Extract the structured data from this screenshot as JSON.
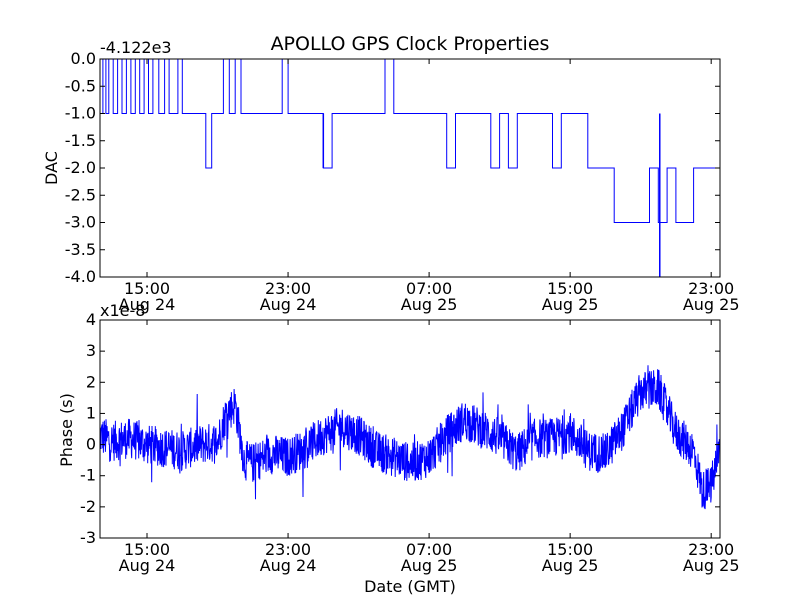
{
  "title": "APOLLO GPS Clock Properties",
  "colors": {
    "series": "#0000ff",
    "axes": "#000000",
    "background": "#ffffff"
  },
  "chart_data": [
    {
      "type": "line",
      "ylabel": "DAC",
      "offset_label": "-4.122e3",
      "ylim": [
        -4.0,
        0.0
      ],
      "yticks": [
        "0.0",
        "-0.5",
        "-1.0",
        "-1.5",
        "-2.0",
        "-2.5",
        "-3.0",
        "-3.5",
        "-4.0"
      ],
      "ytick_values": [
        0.0,
        -0.5,
        -1.0,
        -1.5,
        -2.0,
        -2.5,
        -3.0,
        -3.5,
        -4.0
      ],
      "xlim": [
        "2009-08-24 12:20",
        "2009-08-25 23:30"
      ],
      "xticks": [
        {
          "time": "15:00",
          "date": "Aug 24",
          "at": "2009-08-24 15:00"
        },
        {
          "time": "23:00",
          "date": "Aug 24",
          "at": "2009-08-24 23:00"
        },
        {
          "time": "07:00",
          "date": "Aug 25",
          "at": "2009-08-25 07:00"
        },
        {
          "time": "15:00",
          "date": "Aug 25",
          "at": "2009-08-25 15:00"
        },
        {
          "time": "23:00",
          "date": "Aug 25",
          "at": "2009-08-25 23:00"
        }
      ],
      "series": [
        {
          "x": [
            "2009-08-24 12:20",
            "2009-08-24 12:30",
            "2009-08-24 12:40",
            "2009-08-24 12:50",
            "2009-08-24 13:05",
            "2009-08-24 13:20",
            "2009-08-24 13:35",
            "2009-08-24 13:50",
            "2009-08-24 14:05",
            "2009-08-24 14:20",
            "2009-08-24 14:35",
            "2009-08-24 14:50",
            "2009-08-24 15:05",
            "2009-08-24 15:20",
            "2009-08-24 15:40",
            "2009-08-24 16:00",
            "2009-08-24 16:15",
            "2009-08-24 16:30",
            "2009-08-24 16:45",
            "2009-08-24 17:00",
            "2009-08-24 17:20",
            "2009-08-24 17:40",
            "2009-08-24 18:00",
            "2009-08-24 18:20",
            "2009-08-24 18:40",
            "2009-08-24 19:00",
            "2009-08-24 19:20",
            "2009-08-24 19:40",
            "2009-08-24 20:00",
            "2009-08-24 20:20",
            "2009-08-24 20:40",
            "2009-08-24 21:00",
            "2009-08-24 21:20",
            "2009-08-24 21:40",
            "2009-08-24 22:00",
            "2009-08-24 22:20",
            "2009-08-24 22:40",
            "2009-08-24 23:00",
            "2009-08-24 23:20",
            "2009-08-24 23:40",
            "2009-08-25 00:00",
            "2009-08-25 00:30",
            "2009-08-25 01:00",
            "2009-08-25 01:30",
            "2009-08-25 02:00",
            "2009-08-25 02:30",
            "2009-08-25 03:00",
            "2009-08-25 03:30",
            "2009-08-25 04:00",
            "2009-08-25 04:30",
            "2009-08-25 05:00",
            "2009-08-25 05:30",
            "2009-08-25 06:00",
            "2009-08-25 06:30",
            "2009-08-25 07:00",
            "2009-08-25 07:30",
            "2009-08-25 08:00",
            "2009-08-25 08:30",
            "2009-08-25 09:00",
            "2009-08-25 09:30",
            "2009-08-25 10:00",
            "2009-08-25 10:30",
            "2009-08-25 11:00",
            "2009-08-25 11:30",
            "2009-08-25 12:00",
            "2009-08-25 12:30",
            "2009-08-25 13:00",
            "2009-08-25 13:30",
            "2009-08-25 14:00",
            "2009-08-25 14:30",
            "2009-08-25 15:00",
            "2009-08-25 15:30",
            "2009-08-25 16:00",
            "2009-08-25 16:30",
            "2009-08-25 17:00",
            "2009-08-25 17:30",
            "2009-08-25 18:00",
            "2009-08-25 18:30",
            "2009-08-25 19:00",
            "2009-08-25 19:30",
            "2009-08-25 20:00",
            "2009-08-25 20:30",
            "2009-08-25 21:00",
            "2009-08-25 21:30",
            "2009-08-25 22:00",
            "2009-08-25 22:30",
            "2009-08-25 23:00",
            "2009-08-25 23:30"
          ],
          "values": [
            -1.0,
            0.0,
            -1.0,
            0.0,
            -1.0,
            0.0,
            -1.0,
            0.0,
            -1.0,
            0.0,
            -1.0,
            0.0,
            -1.0,
            0.0,
            -1.0,
            0.0,
            -1.0,
            -1.0,
            0.0,
            -1.0,
            -1.0,
            -1.0,
            -1.0,
            -2.0,
            -1.0,
            -1.0,
            0.0,
            -1.0,
            0.0,
            -1.0,
            -1.0,
            -1.0,
            -1.0,
            -1.0,
            -1.0,
            -1.0,
            0.0,
            -1.0,
            -1.0,
            -1.0,
            -1.0,
            -1.0,
            -2.0,
            -1.0,
            -1.0,
            -1.0,
            -1.0,
            -1.0,
            -1.0,
            0.0,
            -1.0,
            -1.0,
            -1.0,
            -1.0,
            -1.0,
            -1.0,
            -2.0,
            -1.0,
            -1.0,
            -1.0,
            -1.0,
            -2.0,
            -1.0,
            -2.0,
            -1.0,
            -1.0,
            -1.0,
            -1.0,
            -2.0,
            -1.0,
            -1.0,
            -1.0,
            -2.0,
            -2.0,
            -2.0,
            -3.0,
            -3.0,
            -3.0,
            -3.0,
            -2.0,
            -3.0,
            -2.0,
            -3.0,
            -3.0,
            -2.0,
            -2.0,
            -2.0,
            -3.0
          ]
        }
      ]
    },
    {
      "type": "line",
      "ylabel": "Phase (s)",
      "xlabel": "Date (GMT)",
      "scale_label": "x1e-8",
      "ylim": [
        -3,
        4
      ],
      "yticks": [
        "4",
        "3",
        "2",
        "1",
        "0",
        "-1",
        "-2",
        "-3"
      ],
      "ytick_values": [
        4,
        3,
        2,
        1,
        0,
        -1,
        -2,
        -3
      ],
      "xlim": [
        "2009-08-24 12:20",
        "2009-08-25 23:30"
      ],
      "xticks": [
        {
          "time": "15:00",
          "date": "Aug 24",
          "at": "2009-08-24 15:00"
        },
        {
          "time": "23:00",
          "date": "Aug 24",
          "at": "2009-08-24 23:00"
        },
        {
          "time": "07:00",
          "date": "Aug 25",
          "at": "2009-08-25 07:00"
        },
        {
          "time": "15:00",
          "date": "Aug 25",
          "at": "2009-08-25 15:00"
        },
        {
          "time": "23:00",
          "date": "Aug 25",
          "at": "2009-08-25 23:00"
        }
      ],
      "series": [
        {
          "x": [
            "2009-08-24 12:20",
            "2009-08-24 13:00",
            "2009-08-24 14:00",
            "2009-08-24 15:00",
            "2009-08-24 16:00",
            "2009-08-24 17:00",
            "2009-08-24 18:00",
            "2009-08-24 19:00",
            "2009-08-24 19:30",
            "2009-08-24 20:00",
            "2009-08-24 20:30",
            "2009-08-24 21:00",
            "2009-08-24 22:00",
            "2009-08-24 23:00",
            "2009-08-25 00:00",
            "2009-08-25 01:00",
            "2009-08-25 02:00",
            "2009-08-25 03:00",
            "2009-08-25 04:00",
            "2009-08-25 05:00",
            "2009-08-25 06:00",
            "2009-08-25 07:00",
            "2009-08-25 08:00",
            "2009-08-25 09:00",
            "2009-08-25 10:00",
            "2009-08-25 11:00",
            "2009-08-25 12:00",
            "2009-08-25 13:00",
            "2009-08-25 14:00",
            "2009-08-25 15:00",
            "2009-08-25 16:00",
            "2009-08-25 17:00",
            "2009-08-25 18:00",
            "2009-08-25 19:00",
            "2009-08-25 20:00",
            "2009-08-25 21:00",
            "2009-08-25 22:00",
            "2009-08-25 22:30",
            "2009-08-25 23:00",
            "2009-08-25 23:30"
          ],
          "values": [
            0.3,
            0.1,
            0.2,
            0.0,
            -0.1,
            -0.2,
            0.0,
            0.1,
            1.0,
            1.3,
            -0.5,
            -0.6,
            -0.3,
            -0.4,
            -0.1,
            0.3,
            0.6,
            0.3,
            -0.2,
            -0.4,
            -0.6,
            -0.4,
            0.3,
            0.8,
            0.5,
            0.2,
            -0.3,
            0.2,
            0.2,
            0.4,
            -0.2,
            -0.3,
            0.5,
            1.7,
            1.8,
            0.4,
            -0.2,
            -1.5,
            -1.3,
            -0.2
          ]
        }
      ]
    }
  ]
}
